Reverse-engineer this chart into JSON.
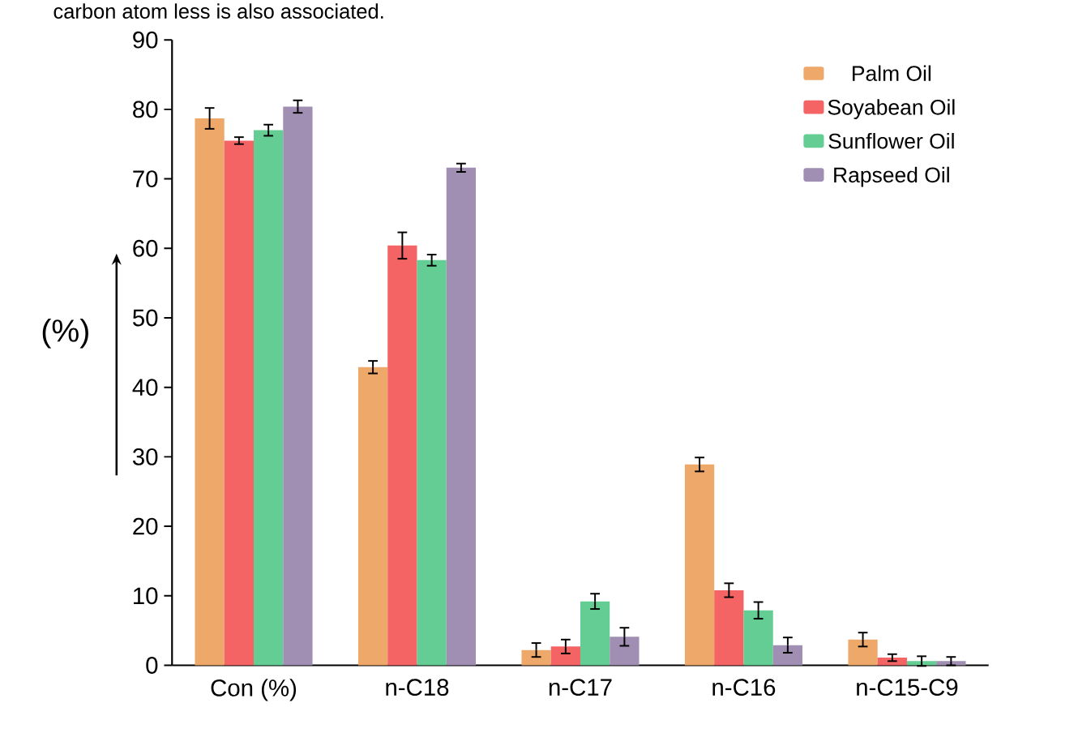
{
  "chart_data": {
    "type": "bar",
    "annotations": [
      "carbon atom less is also associated."
    ],
    "ylabel": "(%)",
    "categories": [
      "Con (%)",
      "n-C18",
      "n-C17",
      "n-C16",
      "n-C15-C9"
    ],
    "series": [
      {
        "name": "Palm Oil",
        "color": "#eea96a",
        "values": [
          78.7,
          42.9,
          2.2,
          28.9,
          3.7
        ],
        "errors": [
          1.5,
          0.9,
          1.0,
          1.0,
          1.0
        ]
      },
      {
        "name": "Soyabean Oil",
        "color": "#f56464",
        "values": [
          75.5,
          60.4,
          2.7,
          10.8,
          1.1
        ],
        "errors": [
          0.5,
          1.9,
          1.0,
          1.0,
          0.5
        ]
      },
      {
        "name": "Sunflower Oil",
        "color": "#64cd94",
        "values": [
          77.0,
          58.3,
          9.2,
          7.9,
          0.6
        ],
        "errors": [
          0.8,
          0.8,
          1.1,
          1.2,
          0.7
        ]
      },
      {
        "name": "Rapseed Oil",
        "color": "#a08fb2",
        "values": [
          80.4,
          71.6,
          4.1,
          2.9,
          0.6
        ],
        "errors": [
          0.9,
          0.6,
          1.3,
          1.1,
          0.6
        ]
      }
    ],
    "ylim": [
      0,
      90
    ],
    "yticks": [
      0,
      10,
      20,
      30,
      40,
      50,
      60,
      70,
      80,
      90
    ],
    "legend": "top right",
    "grid": false
  }
}
